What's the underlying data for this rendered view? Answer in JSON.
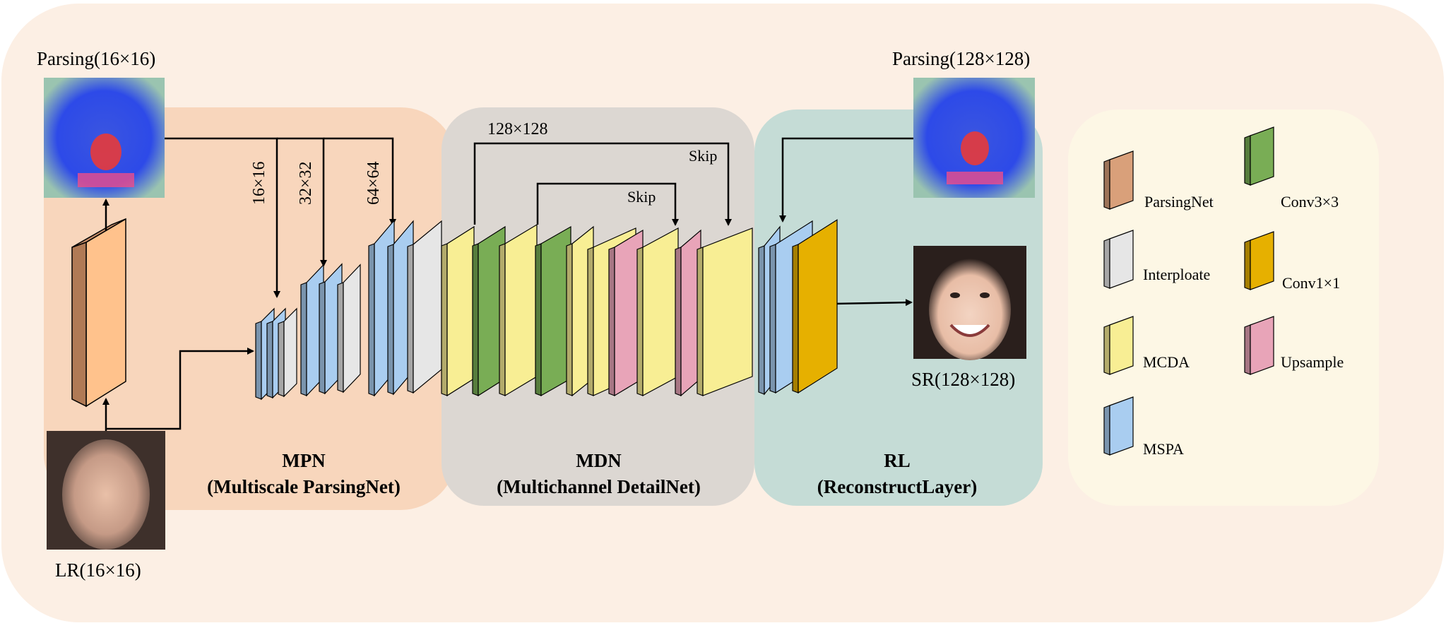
{
  "diagram": {
    "inputs": {
      "parsing_small": "Parsing(16×16)",
      "lr": "LR(16×16)",
      "parsing_large": "Parsing(128×128)",
      "sr": "SR(128×128)"
    },
    "modules": [
      {
        "name": "MPN",
        "full": "(Multiscale ParsingNet)"
      },
      {
        "name": "MDN",
        "full": "(Multichannel DetailNet)"
      },
      {
        "name": "RL",
        "full": "(ReconstructLayer)"
      }
    ],
    "scale_labels": [
      "16×16",
      "32×32",
      "64×64"
    ],
    "skip_labels": {
      "outer_size": "128×128",
      "skip1": "Skip",
      "skip2": "Skip"
    },
    "legend": [
      {
        "label": "ParsingNet",
        "color": "#d9a07a"
      },
      {
        "label": "Conv3×3",
        "color": "#79ad55"
      },
      {
        "label": "Interploate",
        "color": "#e6e6e6"
      },
      {
        "label": "Conv1×1",
        "color": "#e6b000"
      },
      {
        "label": "MCDA",
        "color": "#f8ee94"
      },
      {
        "label": "Upsample",
        "color": "#e8a4b8"
      },
      {
        "label": "MSPA",
        "color": "#a9cdf0"
      }
    ],
    "colors": {
      "background": "#fcefe4",
      "mpn_panel": "#f8d6bc",
      "mdn_panel": "#dcd7d2",
      "rl_panel": "#c5dcd6",
      "legend_panel": "#fdf7e5"
    }
  }
}
